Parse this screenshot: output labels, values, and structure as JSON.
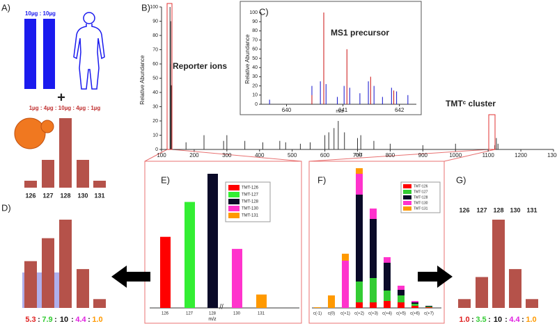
{
  "figure": {
    "panel_labels": [
      "A)",
      "B)",
      "C)",
      "D)",
      "E)",
      "F)",
      "G)"
    ],
    "A": {
      "top_ratio": "10µg : 10µg",
      "plus": "+",
      "mix_ratio": "1µg : 4µg : 10µg : 4µg : 1µg",
      "categories": [
        "126",
        "127",
        "128",
        "130",
        "131"
      ],
      "values": [
        1,
        4,
        10,
        4,
        1
      ],
      "color": "#b5524a"
    },
    "B": {
      "type": "spectrum",
      "ylabel": "Relative Abundance",
      "xlabel": "m/z",
      "xlim": [
        100,
        1300
      ],
      "ylim": [
        0,
        100
      ],
      "xticks": [
        100,
        200,
        300,
        400,
        500,
        600,
        700,
        800,
        900,
        1000,
        1100,
        1200,
        1300
      ],
      "yticks": [
        0,
        10,
        20,
        30,
        40,
        50,
        60,
        70,
        80,
        90,
        100
      ],
      "annotations": [
        "Reporter ions",
        "TMTᶜ cluster"
      ],
      "x": [
        126,
        127,
        128,
        130,
        131,
        175,
        230,
        290,
        300,
        355,
        410,
        462,
        480,
        525,
        555,
        600,
        612,
        628,
        641,
        660,
        700,
        710,
        750,
        800,
        900,
        1000,
        1120,
        1125,
        1130
      ],
      "values": [
        100,
        60,
        90,
        45,
        20,
        5,
        10,
        6,
        10,
        6,
        5,
        6,
        5,
        4,
        5,
        10,
        12,
        15,
        20,
        12,
        8,
        10,
        6,
        4,
        3,
        4,
        3,
        8,
        4
      ],
      "color": "#333333"
    },
    "C": {
      "type": "spectrum",
      "title": "MS1 precursor",
      "ylabel": "Relative Abundance",
      "xlabel": "m/z",
      "xlim": [
        639.55,
        642.3
      ],
      "ylim": [
        0,
        100
      ],
      "xticks": [
        640,
        641,
        642
      ],
      "yticks": [
        0,
        10,
        20,
        30,
        40,
        50,
        60,
        70,
        80,
        90,
        100
      ],
      "series": [
        {
          "color": "#1010cc",
          "x": [
            639.7,
            640.45,
            640.6,
            640.7,
            640.9,
            641.02,
            641.12,
            641.3,
            641.45,
            641.55,
            641.7,
            641.86,
            641.95,
            642.15
          ],
          "values": [
            5,
            20,
            25,
            22,
            8,
            20,
            18,
            12,
            25,
            20,
            8,
            18,
            14,
            10
          ]
        },
        {
          "color": "#cc1010",
          "x": [
            640.45,
            640.66,
            641.07,
            641.49,
            641.9
          ],
          "values": [
            10,
            100,
            60,
            30,
            15
          ]
        }
      ]
    },
    "D": {
      "values": [
        5.3,
        7.9,
        10,
        4.4,
        1.0
      ],
      "value_labels": [
        "5.3",
        "7.9",
        "10",
        "4.4",
        "1.0"
      ],
      "label_colors": [
        "#e02020",
        "#33cc33",
        "#111111",
        "#e020e0",
        "#ff9900"
      ],
      "separator": ":",
      "color": "#b5524a"
    },
    "E": {
      "categories": [
        "126",
        "127",
        "128",
        "130",
        "131"
      ],
      "xlabel": "m/z",
      "values": [
        5.3,
        7.9,
        10,
        4.4,
        1.0
      ],
      "colors": [
        "#ff0000",
        "#33ee33",
        "#0a0a28",
        "#ff33cc",
        "#ff9900"
      ],
      "legend": [
        "TMT-126",
        "TMT-127",
        "TMT-128",
        "TMT-130",
        "TMT-131"
      ]
    },
    "F": {
      "categories": [
        "c(-1)",
        "c(0)",
        "c(+1)",
        "c(+2)",
        "c(+3)",
        "c(+4)",
        "c(+5)",
        "c(+6)",
        "c(+7)"
      ],
      "series": [
        {
          "name": "TMTᶜ126",
          "color": "#ff0000",
          "values": [
            0,
            0,
            0,
            8,
            8,
            10,
            8,
            3,
            1
          ]
        },
        {
          "name": "TMTᶜ127",
          "color": "#33cc33",
          "values": [
            0,
            0,
            0,
            30,
            35,
            15,
            10,
            3,
            1
          ]
        },
        {
          "name": "TMTᶜ128",
          "color": "#0a0a28",
          "values": [
            0,
            0,
            0,
            125,
            85,
            40,
            8,
            2,
            1
          ]
        },
        {
          "name": "TMTᶜ130",
          "color": "#ff33cc",
          "values": [
            0,
            0,
            68,
            30,
            15,
            8,
            6,
            2,
            0
          ]
        },
        {
          "name": "TMTᶜ131",
          "color": "#ff9900",
          "values": [
            1,
            18,
            10,
            8,
            0,
            0,
            0,
            0,
            0
          ]
        }
      ]
    },
    "G": {
      "categories": [
        "126",
        "127",
        "128",
        "130",
        "131"
      ],
      "values": [
        1.0,
        3.5,
        10,
        4.4,
        1.0
      ],
      "value_labels": [
        "1.0",
        "3.5",
        "10",
        "4.4",
        "1.0"
      ],
      "label_colors": [
        "#e02020",
        "#33cc33",
        "#111111",
        "#e020e0",
        "#ff9900"
      ],
      "separator": ":",
      "color": "#b5524a"
    }
  }
}
